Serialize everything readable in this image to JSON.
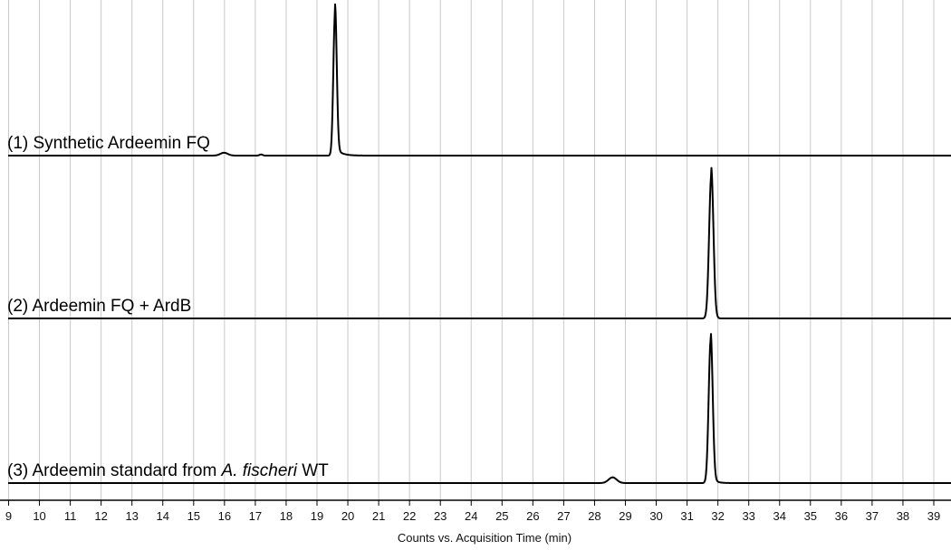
{
  "chart_data": {
    "type": "line",
    "xlabel": "Counts vs. Acquisition Time (min)",
    "xlim": [
      9,
      39.7
    ],
    "x_ticks": [
      9,
      10,
      11,
      12,
      13,
      14,
      15,
      16,
      17,
      18,
      19,
      20,
      21,
      22,
      23,
      24,
      25,
      26,
      27,
      28,
      29,
      30,
      31,
      32,
      33,
      34,
      35,
      36,
      37,
      38,
      39
    ],
    "grid": {
      "vertical": true,
      "color": "#c8c8c8"
    },
    "series_color": "#000000",
    "series": [
      {
        "label_parts": [
          {
            "text": "(1) Synthetic Ardeemin FQ",
            "italic": false
          }
        ],
        "peaks": [
          {
            "x": 19.6,
            "height": 1.0,
            "width": 0.055,
            "tail": 0.18
          },
          {
            "x": 16.0,
            "height": 0.02,
            "width": 0.12,
            "tail": 0
          },
          {
            "x": 17.2,
            "height": 0.008,
            "width": 0.05,
            "tail": 0
          }
        ]
      },
      {
        "label_parts": [
          {
            "text": "(2) Ardeemin FQ + ArdB",
            "italic": false
          }
        ],
        "peaks": [
          {
            "x": 31.8,
            "height": 1.0,
            "width": 0.07,
            "tail": 0.06
          }
        ]
      },
      {
        "label_parts": [
          {
            "text": "(3) Ardeemin standard from ",
            "italic": false
          },
          {
            "text": "A. fischeri",
            "italic": true
          },
          {
            "text": " WT",
            "italic": false
          }
        ],
        "peaks": [
          {
            "x": 31.78,
            "height": 1.0,
            "width": 0.065,
            "tail": 0.12
          },
          {
            "x": 28.6,
            "height": 0.04,
            "width": 0.13,
            "tail": 0
          }
        ]
      }
    ]
  }
}
